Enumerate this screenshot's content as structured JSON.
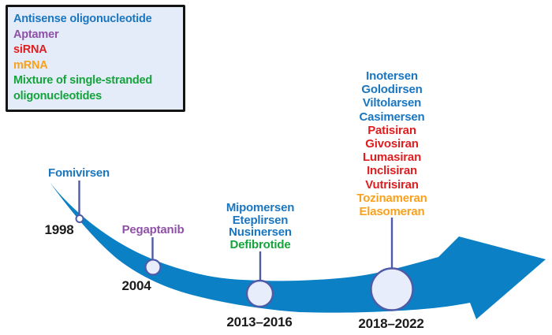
{
  "background": "#ffffff",
  "legend": {
    "items": [
      {
        "label": "Antisense oligonucleotide",
        "category": "antisense-oligonucleotide",
        "color": "#1b76c0"
      },
      {
        "label": "Aptamer",
        "category": "aptamer",
        "color": "#8f51a8"
      },
      {
        "label": "siRNA",
        "category": "sirna",
        "color": "#e01e20"
      },
      {
        "label": "mRNA",
        "category": "mrna",
        "color": "#f9a11d"
      },
      {
        "label": "Mixture of single-stranded oligonucleotides",
        "category": "mixture-of-single-stranded-oligonucleotides",
        "color": "#15a33c"
      }
    ]
  },
  "timeline": {
    "arrow_color": "#0b80c4",
    "connector_color": "#4f5aa8",
    "node_fill": "#e7edfa",
    "node_fill_first": "#ffffff",
    "year_color": "#1b1b1b",
    "milestones": [
      {
        "year": "1998",
        "drugs": [
          {
            "name": "Fomivirsen",
            "category": "antisense-oligonucleotide",
            "color": "#1b76c0"
          }
        ]
      },
      {
        "year": "2004",
        "drugs": [
          {
            "name": "Pegaptanib",
            "category": "aptamer",
            "color": "#8f51a8"
          }
        ]
      },
      {
        "year": "2013–2016",
        "drugs": [
          {
            "name": "Mipomersen",
            "category": "antisense-oligonucleotide",
            "color": "#1b76c0"
          },
          {
            "name": "Eteplirsen",
            "category": "antisense-oligonucleotide",
            "color": "#1b76c0"
          },
          {
            "name": "Nusinersen",
            "category": "antisense-oligonucleotide",
            "color": "#1b76c0"
          },
          {
            "name": "Defibrotide",
            "category": "mixture-of-single-stranded-oligonucleotides",
            "color": "#15a33c"
          }
        ]
      },
      {
        "year": "2018–2022",
        "drugs": [
          {
            "name": "Inotersen",
            "category": "antisense-oligonucleotide",
            "color": "#1b76c0"
          },
          {
            "name": "Golodirsen",
            "category": "antisense-oligonucleotide",
            "color": "#1b76c0"
          },
          {
            "name": "Viltolarsen",
            "category": "antisense-oligonucleotide",
            "color": "#1b76c0"
          },
          {
            "name": "Casimersen",
            "category": "antisense-oligonucleotide",
            "color": "#1b76c0"
          },
          {
            "name": "Patisiran",
            "category": "sirna",
            "color": "#e01e20"
          },
          {
            "name": "Givosiran",
            "category": "sirna",
            "color": "#e01e20"
          },
          {
            "name": "Lumasiran",
            "category": "sirna",
            "color": "#e01e20"
          },
          {
            "name": "Inclisiran",
            "category": "sirna",
            "color": "#e01e20"
          },
          {
            "name": "Vutrisiran",
            "category": "sirna",
            "color": "#e01e20"
          },
          {
            "name": "Tozinameran",
            "category": "mrna",
            "color": "#f9a11d"
          },
          {
            "name": "Elasomeran",
            "category": "mrna",
            "color": "#f9a11d"
          }
        ]
      }
    ]
  }
}
